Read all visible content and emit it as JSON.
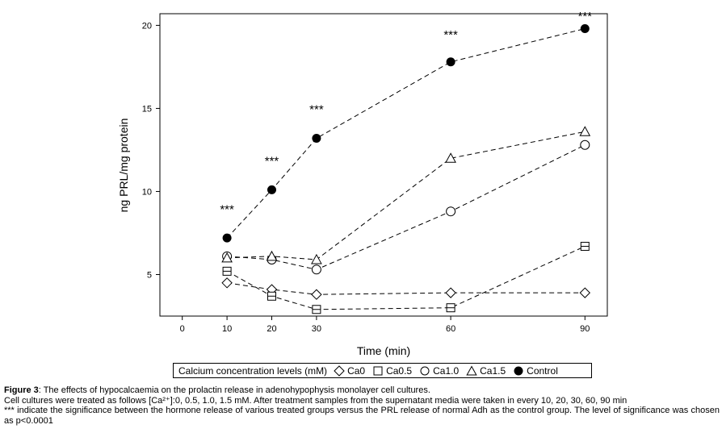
{
  "chart_data": {
    "type": "line",
    "xlabel": "Time (min)",
    "ylabel": "ng PRL/mg protein",
    "xlim": [
      -5,
      95
    ],
    "ylim": [
      2.5,
      20.7
    ],
    "x_ticks": [
      0,
      10,
      20,
      30,
      60,
      90
    ],
    "x_tick_labels": [
      "0",
      "10",
      "20",
      "30",
      "60",
      "90"
    ],
    "y_ticks": [
      5,
      10,
      15,
      20
    ],
    "y_tick_labels": [
      "5",
      "10",
      "15",
      "20"
    ],
    "grid": false,
    "line_style": "dashed",
    "legend_position": "bottom",
    "legend_title": "Calcium concentration levels (mM)",
    "series": [
      {
        "name": "Ca0",
        "marker": "diamond",
        "x": [
          10,
          20,
          30,
          60,
          90
        ],
        "values": [
          4.5,
          4.1,
          3.8,
          3.9,
          3.9
        ]
      },
      {
        "name": "Ca0.5",
        "marker": "square",
        "x": [
          10,
          20,
          30,
          60,
          90
        ],
        "values": [
          5.2,
          3.7,
          2.9,
          3.0,
          6.7
        ]
      },
      {
        "name": "Ca1.0",
        "marker": "circle",
        "x": [
          10,
          20,
          30,
          60,
          90
        ],
        "values": [
          6.1,
          5.9,
          5.3,
          8.8,
          12.8
        ]
      },
      {
        "name": "Ca1.5",
        "marker": "triangle",
        "x": [
          10,
          20,
          30,
          60,
          90
        ],
        "values": [
          6.0,
          6.1,
          5.9,
          12.0,
          13.6
        ]
      },
      {
        "name": "Control",
        "marker": "filled-circle",
        "x": [
          10,
          20,
          30,
          60,
          90
        ],
        "values": [
          7.2,
          10.1,
          13.2,
          17.8,
          19.8
        ]
      }
    ],
    "annotations": [
      {
        "x": 10,
        "y": 8.7,
        "text": "***"
      },
      {
        "x": 20,
        "y": 11.6,
        "text": "***"
      },
      {
        "x": 30,
        "y": 14.7,
        "text": "***"
      },
      {
        "x": 60,
        "y": 19.2,
        "text": "***"
      },
      {
        "x": 90,
        "y": 20.3,
        "text": "***"
      }
    ]
  },
  "caption": {
    "figure_label": "Figure 3",
    "title_rest": ": The effects of hypocalcaemia on the prolactin release in adenohypophysis monolayer cell cultures.",
    "line2": "Cell cultures were treated as follows [Ca²⁺]:0, 0.5, 1.0, 1.5 mM. After treatment samples from the supernatant media were taken in every 10, 20, 30, 60, 90 min",
    "line3": "*** indicate the significance between the hormone release of various treated groups versus the PRL release of normal Adh as the control group. The level of significance was chosen as p<0.0001"
  }
}
